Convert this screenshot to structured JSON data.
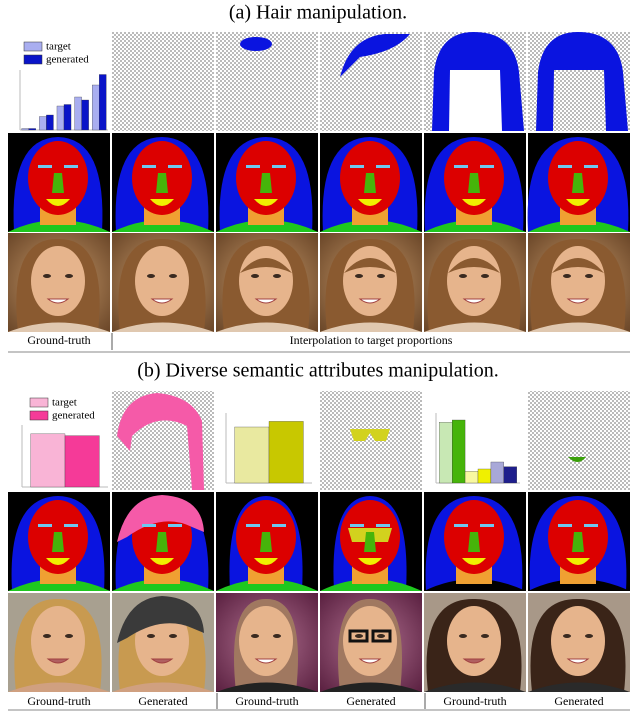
{
  "sections": [
    {
      "title": "(a) Hair manipulation.",
      "legend": [
        {
          "name": "target",
          "color": "#a9aef0"
        },
        {
          "name": "generated",
          "color": "#0a14c8"
        }
      ],
      "charts": [
        {
          "ylim": [
            0,
            0.4
          ],
          "series": [
            {
              "name": "target",
              "color": "#a9aef0",
              "values": [
                0.01,
                0.09,
                0.16,
                0.22,
                0.3
              ]
            },
            {
              "name": "generated",
              "color": "#0a14c8",
              "values": [
                0.01,
                0.1,
                0.17,
                0.2,
                0.37
              ]
            }
          ]
        }
      ],
      "captions": [
        "Ground-truth",
        "Interpolation to target proportions"
      ]
    },
    {
      "title": "(b) Diverse semantic attributes manipulation.",
      "legend": [
        {
          "name": "target",
          "color": "#f9b4d6"
        },
        {
          "name": "generated",
          "color": "#f53a98"
        }
      ],
      "charts": [
        {
          "ylim": [
            0,
            0.35
          ],
          "series": [
            {
              "name": "target",
              "color": "#f9b4d6",
              "values": [
                0.3
              ]
            },
            {
              "name": "generated",
              "color": "#f53a98",
              "values": [
                0.29
              ]
            }
          ]
        },
        {
          "ylim": [
            0,
            0.5
          ],
          "series": [
            {
              "name": "target",
              "color": "#e9e9a0",
              "values": [
                0.4
              ]
            },
            {
              "name": "generated",
              "color": "#c8c800",
              "values": [
                0.44
              ]
            }
          ]
        },
        {
          "ylim": [
            0,
            0.03
          ],
          "series": [
            {
              "name": "target",
              "color": "#c8e8b4",
              "values": [
                0.026
              ]
            },
            {
              "name": "generated",
              "color": "#46b40a",
              "values": [
                0.027
              ]
            },
            {
              "name": "target",
              "color": "#f8f8a0",
              "values": [
                0.005
              ]
            },
            {
              "name": "generated",
              "color": "#f0f000",
              "values": [
                0.006
              ]
            },
            {
              "name": "target",
              "color": "#a8a8d8",
              "values": [
                0.009
              ]
            },
            {
              "name": "generated",
              "color": "#1e1e8c",
              "values": [
                0.007
              ]
            }
          ]
        }
      ],
      "captions": [
        "Ground-truth",
        "Generated",
        "Ground-truth",
        "Generated",
        "Ground-truth",
        "Generated"
      ]
    }
  ]
}
